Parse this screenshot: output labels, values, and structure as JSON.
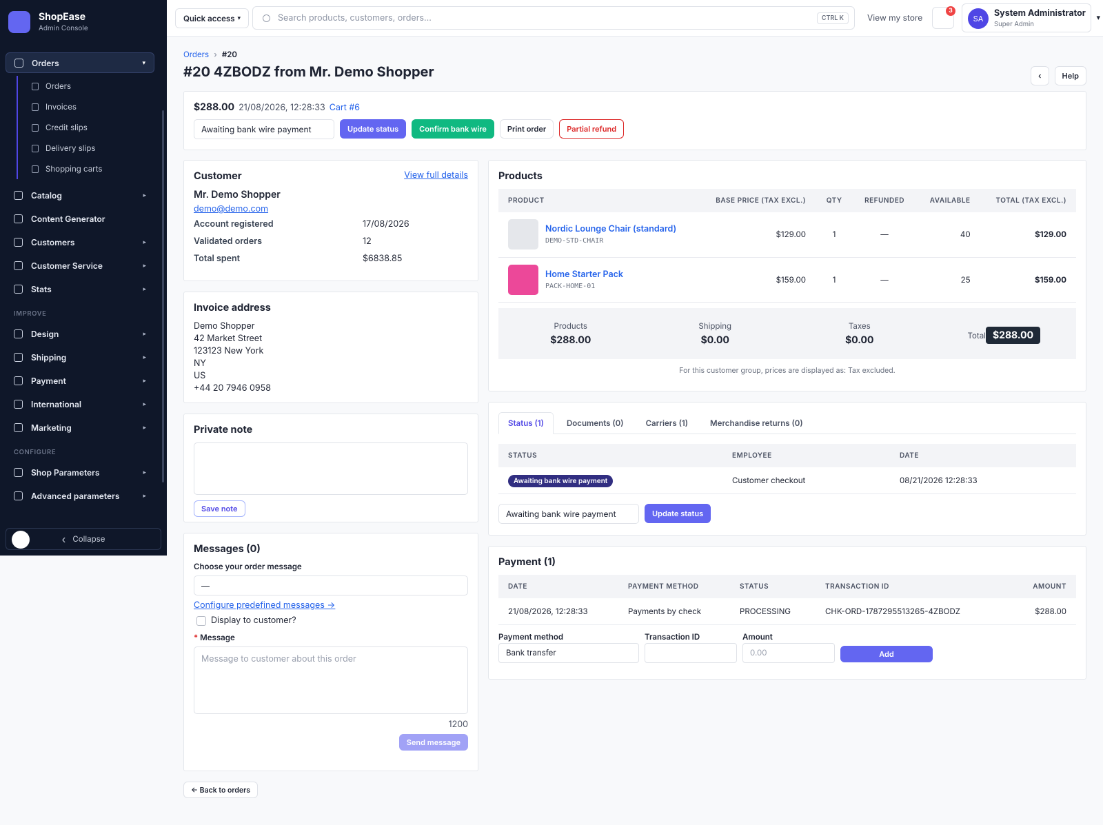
{
  "sidebar": {
    "brand": "ShopEase",
    "tagline": "Admin Console",
    "groups": [
      {
        "items": [
          {
            "label": "Orders",
            "expandable": true,
            "sub": [
              "Orders",
              "Invoices",
              "Credit slips",
              "Delivery slips",
              "Shopping carts"
            ]
          },
          {
            "label": "Catalog",
            "expandable": true
          },
          {
            "label": "Content Generator",
            "expandable": false
          },
          {
            "label": "Customers",
            "expandable": true
          },
          {
            "label": "Customer Service",
            "expandable": true
          },
          {
            "label": "Stats",
            "expandable": true
          }
        ]
      },
      {
        "heading": "IMPROVE",
        "items": [
          {
            "label": "Design",
            "expandable": true
          },
          {
            "label": "Shipping",
            "expandable": true
          },
          {
            "label": "Payment",
            "expandable": true
          },
          {
            "label": "International",
            "expandable": true
          },
          {
            "label": "Marketing",
            "expandable": true
          }
        ]
      },
      {
        "heading": "CONFIGURE",
        "items": [
          {
            "label": "Shop Parameters",
            "expandable": true
          },
          {
            "label": "Advanced parameters",
            "expandable": true
          }
        ]
      }
    ],
    "collapse": "Collapse"
  },
  "topbar": {
    "quick_access": "Quick access",
    "search_placeholder": "Search products, customers, orders...",
    "shortcut": "CTRL K",
    "view_store": "View my store",
    "notifications": "3",
    "avatar": "SA",
    "user_name": "System Administrator",
    "user_role": "Super Admin"
  },
  "header": {
    "breadcrumb": [
      "Orders",
      "#20"
    ],
    "title": "#20 4ZBODZ from Mr. Demo Shopper",
    "help": "Help"
  },
  "summary": {
    "total": "$288.00",
    "date": "21/08/2026, 12:28:33",
    "cart": "Cart #6",
    "status": "Awaiting bank wire payment",
    "actions": [
      "Update status",
      "Confirm bank wire",
      "Print order",
      "Partial refund"
    ]
  },
  "customer": {
    "title": "Customer",
    "link": "View full details",
    "name": "Mr. Demo Shopper",
    "email": "demo@demo.com",
    "rows": [
      [
        "Account registered",
        "17/08/2026"
      ],
      [
        "Validated orders",
        "12"
      ],
      [
        "Total spent",
        "$6838.85"
      ]
    ]
  },
  "invoice": {
    "title": "Invoice address",
    "lines": [
      "Demo Shopper",
      "42 Market Street",
      "123123 New York",
      "NY",
      "US",
      "+44 20 7946 0958"
    ]
  },
  "private_note": {
    "title": "Private note",
    "button": "Save note"
  },
  "messages": {
    "title": "Messages (0)",
    "choose_label": "Choose your order message",
    "choose_value": "—",
    "configure_link": "Configure predefined messages →",
    "display_label": "Display to customer?",
    "message_label": "Message",
    "message_placeholder": "Message to customer about this order",
    "counter": "1200",
    "button": "Send message"
  },
  "back": "← Back to orders",
  "products": {
    "title": "Products",
    "columns": [
      "PRODUCT",
      "BASE PRICE (TAX EXCL.)",
      "QTY",
      "REFUNDED",
      "AVAILABLE",
      "TOTAL (TAX EXCL.)"
    ],
    "rows": [
      {
        "name": "Nordic Lounge Chair (standard)",
        "sku": "DEMO-STD-CHAIR",
        "price": "$129.00",
        "qty": "1",
        "refunded": "—",
        "available": "40",
        "total": "$129.00"
      },
      {
        "name": "Home Starter Pack",
        "sku": "PACK-HOME-01",
        "price": "$159.00",
        "qty": "1",
        "refunded": "—",
        "available": "25",
        "total": "$159.00"
      }
    ],
    "totals": [
      {
        "label": "Products",
        "value": "$288.00"
      },
      {
        "label": "Shipping",
        "value": "$0.00"
      },
      {
        "label": "Taxes",
        "value": "$0.00"
      },
      {
        "label": "Total",
        "value": "$288.00"
      }
    ],
    "note": "For this customer group, prices are displayed as: Tax excluded."
  },
  "history": {
    "tabs": [
      "Status (1)",
      "Documents (0)",
      "Carriers (1)",
      "Merchandise returns (0)"
    ],
    "columns": [
      "STATUS",
      "EMPLOYEE",
      "DATE"
    ],
    "rows": [
      [
        "Awaiting bank wire payment",
        "Customer checkout",
        "08/21/2026 12:28:33"
      ]
    ],
    "select": "Awaiting bank wire payment",
    "button": "Update status"
  },
  "payment": {
    "title": "Payment (1)",
    "columns": [
      "DATE",
      "PAYMENT METHOD",
      "STATUS",
      "TRANSACTION ID",
      "AMOUNT"
    ],
    "rows": [
      [
        "21/08/2026, 12:28:33",
        "Payments by check",
        "PROCESSING",
        "CHK-ORD-1787295513265-4ZBODZ",
        "$288.00"
      ]
    ],
    "form_labels": [
      "Payment method",
      "Transaction ID",
      "Amount"
    ],
    "method": "Bank transfer",
    "amount_placeholder": "0.00",
    "button": "Add"
  }
}
